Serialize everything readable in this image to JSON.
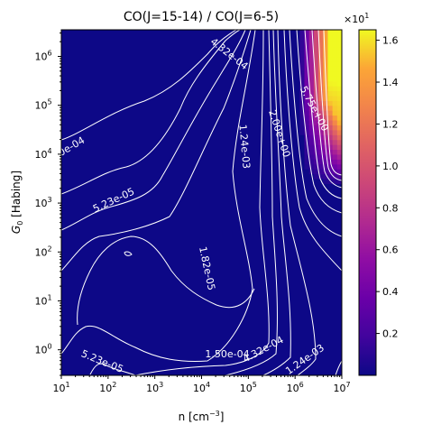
{
  "chart_data": {
    "type": "heatmap",
    "title": "CO(J=15-14) / CO(J=6-5)",
    "xlabel_main": "n [cm",
    "xlabel_sup": "−3",
    "xlabel_end": "]",
    "ylabel_main": "G",
    "ylabel_sub": "0",
    "ylabel_end": " [Habing]",
    "x_scale": "log",
    "y_scale": "log",
    "xlim": [
      10,
      10000000
    ],
    "ylim": [
      0.3,
      3500000
    ],
    "x_ticks": [
      {
        "value": 10,
        "base": "10",
        "exp": "1"
      },
      {
        "value": 100,
        "base": "10",
        "exp": "2"
      },
      {
        "value": 1000,
        "base": "10",
        "exp": "3"
      },
      {
        "value": 10000,
        "base": "10",
        "exp": "4"
      },
      {
        "value": 100000,
        "base": "10",
        "exp": "5"
      },
      {
        "value": 1000000,
        "base": "10",
        "exp": "6"
      },
      {
        "value": 10000000,
        "base": "10",
        "exp": "7"
      }
    ],
    "y_ticks": [
      {
        "value": 1,
        "base": "10",
        "exp": "0"
      },
      {
        "value": 10,
        "base": "10",
        "exp": "1"
      },
      {
        "value": 100,
        "base": "10",
        "exp": "2"
      },
      {
        "value": 1000,
        "base": "10",
        "exp": "3"
      },
      {
        "value": 10000,
        "base": "10",
        "exp": "4"
      },
      {
        "value": 100000,
        "base": "10",
        "exp": "5"
      },
      {
        "value": 1000000,
        "base": "10",
        "exp": "6"
      }
    ],
    "colormap": "plasma",
    "colorbar": {
      "multiplier_base": "×10",
      "multiplier_exp": "1",
      "range": [
        0.0,
        1.65
      ],
      "ticks": [
        "0.2",
        "0.4",
        "0.6",
        "0.8",
        "1.0",
        "1.2",
        "1.4",
        "1.6"
      ],
      "tick_values": [
        0.2,
        0.4,
        0.6,
        0.8,
        1.0,
        1.2,
        1.4,
        1.6
      ]
    },
    "contour_labels": [
      {
        "text": "4.32e-04",
        "logn": 4.55,
        "logg": 6.0,
        "angle": 38
      },
      {
        "text": "5.75e+00",
        "logn": 6.35,
        "logg": 4.9,
        "angle": 62
      },
      {
        "text": "2.00e+00",
        "logn": 5.6,
        "logg": 4.4,
        "angle": 72
      },
      {
        "text": "1.24e-03",
        "logn": 4.85,
        "logg": 4.15,
        "angle": 85
      },
      {
        "text": "0e-04",
        "logn": 1.25,
        "logg": 4.1,
        "angle": -30
      },
      {
        "text": "5.23e-05",
        "logn": 2.15,
        "logg": 3.0,
        "angle": -25
      },
      {
        "text": "1.82e-05",
        "logn": 4.05,
        "logg": 1.65,
        "angle": 78
      },
      {
        "text": "5.23e-05",
        "logn": 1.85,
        "logg": -0.3,
        "angle": 22
      },
      {
        "text": "1.50e-04",
        "logn": 4.55,
        "logg": -0.15,
        "angle": 0
      },
      {
        "text": "4.32e-04",
        "logn": 5.35,
        "logg": -0.05,
        "angle": -28
      },
      {
        "text": "1.24e-03",
        "logn": 6.25,
        "logg": -0.25,
        "angle": -35
      }
    ]
  }
}
